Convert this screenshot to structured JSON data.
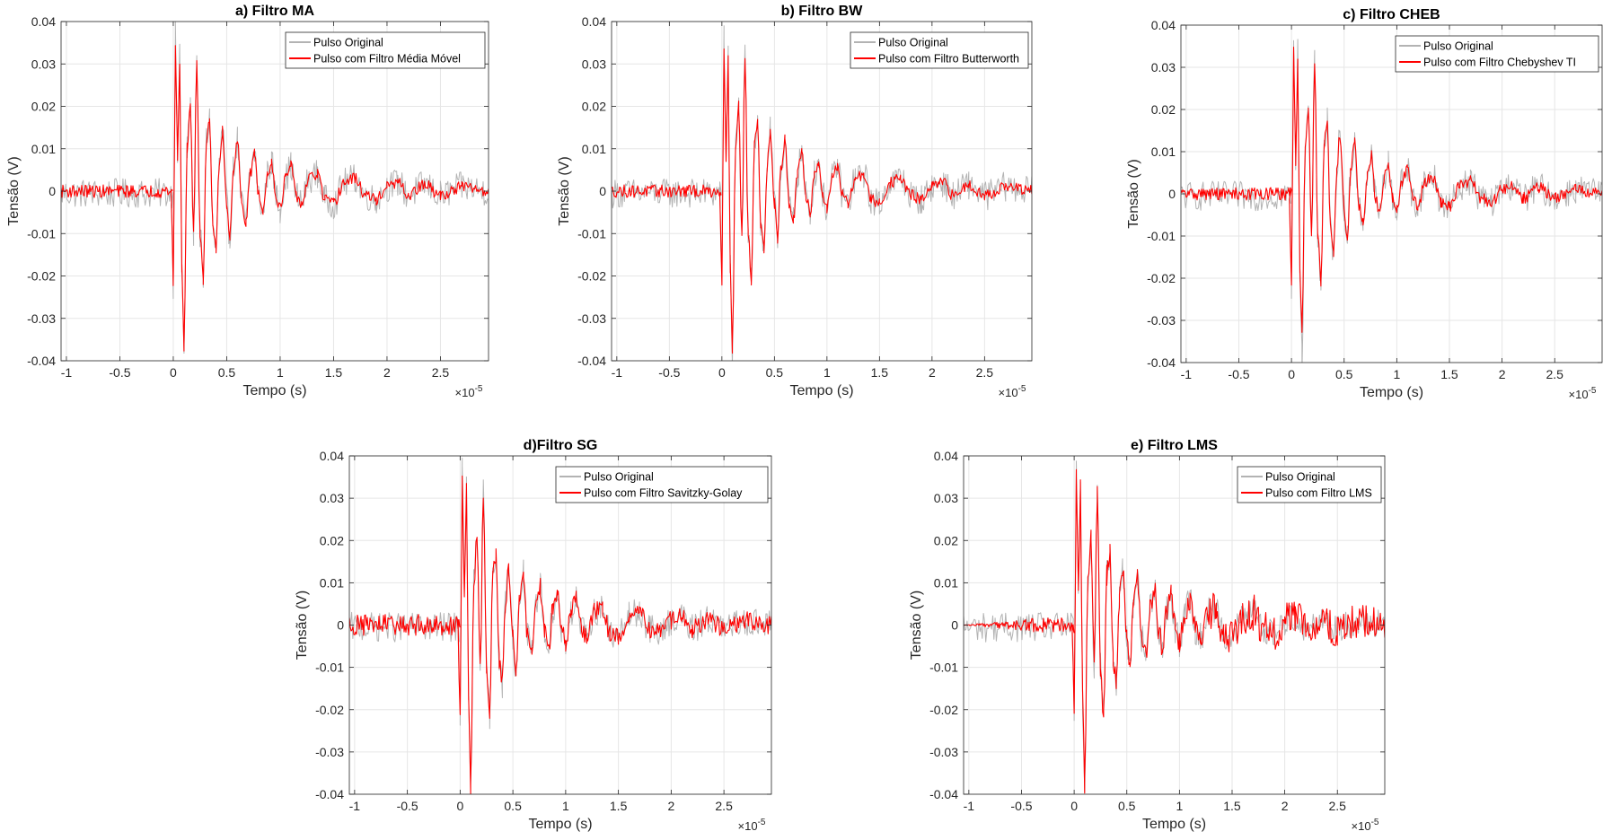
{
  "figure": {
    "x_exponent_base": "×10",
    "x_exponent_power": "-5"
  },
  "colors": {
    "original": "#b3b3b3",
    "filtered": "#ff0000",
    "grid": "#e6e6e6",
    "axis": "#262626"
  },
  "chart_data": [
    {
      "type": "line",
      "title": "a) Filtro MA",
      "xlabel": "Tempo (s)",
      "ylabel": "Tensão (V)",
      "xlim": [
        -1.05e-05,
        2.95e-05
      ],
      "ylim": [
        -0.04,
        0.04
      ],
      "x_ticks": [
        -1,
        -0.5,
        0,
        0.5,
        1,
        1.5,
        2,
        2.5
      ],
      "x_tick_labels": [
        "-1",
        "-0.5",
        "0",
        "0.5",
        "1",
        "1.5",
        "2",
        "2.5"
      ],
      "y_ticks": [
        -0.04,
        -0.03,
        -0.02,
        -0.01,
        0,
        0.01,
        0.02,
        0.03,
        0.04
      ],
      "y_tick_labels": [
        "-0.04",
        "-0.03",
        "-0.02",
        "-0.01",
        "0",
        "0.01",
        "0.02",
        "0.03",
        "0.04"
      ],
      "grid": true,
      "legend_position": "top-right",
      "series": [
        {
          "name": "Pulso Original",
          "color": "#b3b3b3",
          "noise_band": [
            -0.004,
            0.003
          ],
          "pulse_peak_max": 0.037,
          "pulse_peak_min": -0.039,
          "pulse_start": 0
        },
        {
          "name": "Pulso com Filtro Média Móvel",
          "color": "#ff0000",
          "noise_band": [
            -0.0015,
            0.0015
          ],
          "pulse_peak_max": 0.034,
          "pulse_peak_min": -0.037,
          "pulse_start": 0
        }
      ]
    },
    {
      "type": "line",
      "title": "b) Filtro BW",
      "xlabel": "Tempo (s)",
      "ylabel": "Tensão (V)",
      "xlim": [
        -1.05e-05,
        2.95e-05
      ],
      "ylim": [
        -0.04,
        0.04
      ],
      "x_ticks": [
        -1,
        -0.5,
        0,
        0.5,
        1,
        1.5,
        2,
        2.5
      ],
      "x_tick_labels": [
        "-1",
        "-0.5",
        "0",
        "0.5",
        "1",
        "1.5",
        "2",
        "2.5"
      ],
      "y_ticks": [
        -0.04,
        -0.03,
        -0.02,
        -0.01,
        0,
        0.01,
        0.02,
        0.03,
        0.04
      ],
      "y_tick_labels": [
        "-0.04",
        "-0.03",
        "-0.02",
        "-0.01",
        "0",
        "0.01",
        "0.02",
        "0.03",
        "0.04"
      ],
      "grid": true,
      "legend_position": "top-right",
      "series": [
        {
          "name": "Pulso Original",
          "color": "#b3b3b3",
          "noise_band": [
            -0.004,
            0.003
          ],
          "pulse_peak_max": 0.037,
          "pulse_peak_min": -0.039,
          "pulse_start": 0
        },
        {
          "name": "Pulso com Filtro Butterworth",
          "color": "#ff0000",
          "noise_band": [
            -0.0015,
            0.0015
          ],
          "pulse_peak_max": 0.034,
          "pulse_peak_min": -0.037,
          "pulse_start": 0
        }
      ]
    },
    {
      "type": "line",
      "title": "c) Filtro CHEB",
      "xlabel": "Tempo (s)",
      "ylabel": "Tensão (V)",
      "xlim": [
        -1.05e-05,
        2.95e-05
      ],
      "ylim": [
        -0.04,
        0.04
      ],
      "x_ticks": [
        -1,
        -0.5,
        0,
        0.5,
        1,
        1.5,
        2,
        2.5
      ],
      "x_tick_labels": [
        "-1",
        "-0.5",
        "0",
        "0.5",
        "1",
        "1.5",
        "2",
        "2.5"
      ],
      "y_ticks": [
        -0.04,
        -0.03,
        -0.02,
        -0.01,
        0,
        0.01,
        0.02,
        0.03,
        0.04
      ],
      "y_tick_labels": [
        "-0.04",
        "-0.03",
        "-0.02",
        "-0.01",
        "0",
        "0.01",
        "0.02",
        "0.03",
        "0.04"
      ],
      "grid": true,
      "legend_position": "top-right",
      "series": [
        {
          "name": "Pulso Original",
          "color": "#b3b3b3",
          "noise_band": [
            -0.004,
            0.003
          ],
          "pulse_peak_max": 0.037,
          "pulse_peak_min": -0.039,
          "pulse_start": 0
        },
        {
          "name": "Pulso com Filtro Chebyshev TI",
          "color": "#ff0000",
          "noise_band": [
            -0.0015,
            0.0015
          ],
          "pulse_peak_max": 0.034,
          "pulse_peak_min": -0.033,
          "pulse_start": 0
        }
      ]
    },
    {
      "type": "line",
      "title": "d)Filtro SG",
      "xlabel": "Tempo (s)",
      "ylabel": "Tensão (V)",
      "xlim": [
        -1.05e-05,
        2.95e-05
      ],
      "ylim": [
        -0.04,
        0.04
      ],
      "x_ticks": [
        -1,
        -0.5,
        0,
        0.5,
        1,
        1.5,
        2,
        2.5
      ],
      "x_tick_labels": [
        "-1",
        "-0.5",
        "0",
        "0.5",
        "1",
        "1.5",
        "2",
        "2.5"
      ],
      "y_ticks": [
        -0.04,
        -0.03,
        -0.02,
        -0.01,
        0,
        0.01,
        0.02,
        0.03,
        0.04
      ],
      "y_tick_labels": [
        "-0.04",
        "-0.03",
        "-0.02",
        "-0.01",
        "0",
        "0.01",
        "0.02",
        "0.03",
        "0.04"
      ],
      "grid": true,
      "legend_position": "top-right",
      "series": [
        {
          "name": "Pulso Original",
          "color": "#b3b3b3",
          "noise_band": [
            -0.004,
            0.003
          ],
          "pulse_peak_max": 0.037,
          "pulse_peak_min": -0.039,
          "pulse_start": 0
        },
        {
          "name": "Pulso com Filtro Savitzky-Golay",
          "color": "#ff0000",
          "noise_band": [
            -0.0025,
            0.0025
          ],
          "pulse_peak_max": 0.035,
          "pulse_peak_min": -0.038,
          "pulse_start": 0
        }
      ]
    },
    {
      "type": "line",
      "title": "e) Filtro LMS",
      "xlabel": "Tempo (s)",
      "ylabel": "Tensão (V)",
      "xlim": [
        -1.05e-05,
        2.95e-05
      ],
      "ylim": [
        -0.04,
        0.04
      ],
      "x_ticks": [
        -1,
        -0.5,
        0,
        0.5,
        1,
        1.5,
        2,
        2.5
      ],
      "x_tick_labels": [
        "-1",
        "-0.5",
        "0",
        "0.5",
        "1",
        "1.5",
        "2",
        "2.5"
      ],
      "y_ticks": [
        -0.04,
        -0.03,
        -0.02,
        -0.01,
        0,
        0.01,
        0.02,
        0.03,
        0.04
      ],
      "y_tick_labels": [
        "-0.04",
        "-0.03",
        "-0.02",
        "-0.01",
        "0",
        "0.01",
        "0.02",
        "0.03",
        "0.04"
      ],
      "grid": true,
      "legend_position": "top-right",
      "series": [
        {
          "name": "Pulso Original",
          "color": "#b3b3b3",
          "noise_band": [
            -0.004,
            0.003
          ],
          "pulse_peak_max": 0.037,
          "pulse_peak_min": -0.039,
          "pulse_start": 0
        },
        {
          "name": "Pulso com Filtro LMS",
          "color": "#ff0000",
          "noise_band": [
            -0.003,
            0.003
          ],
          "pulse_peak_max": 0.036,
          "pulse_peak_min": -0.038,
          "pulse_start": 0
        }
      ]
    }
  ]
}
